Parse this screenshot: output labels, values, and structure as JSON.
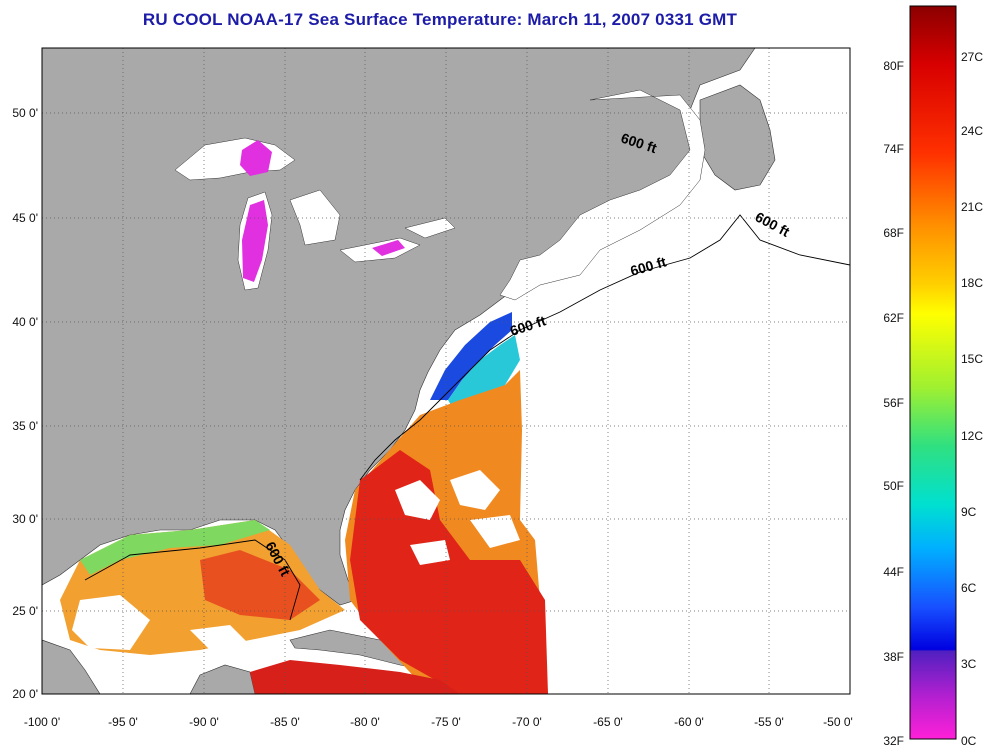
{
  "title": "RU COOL  NOAA-17  Sea Surface Temperature:  March 11, 2007 0331 GMT",
  "map": {
    "lon_range": [
      -100,
      -50
    ],
    "lat_range": [
      20,
      52.5
    ],
    "lon_ticks": [
      "-100 0'",
      "-95 0'",
      "-90 0'",
      "-85 0'",
      "-80 0'",
      "-75 0'",
      "-70 0'",
      "-65 0'",
      "-60 0'",
      "-55 0'",
      "-50 0'"
    ],
    "lat_ticks": [
      "50 0'",
      "45 0'",
      "40 0'",
      "35 0'",
      "30 0'",
      "25 0'",
      "20 0'"
    ],
    "grid": "dotted",
    "land_color": "#a9a9a9",
    "no_data_color": "#ffffff",
    "contour_labels": [
      "600 ft",
      "600 ft",
      "600 ft",
      "600 ft",
      "600 ft"
    ]
  },
  "colorbar": {
    "fahrenheit_labels": [
      "80F",
      "74F",
      "68F",
      "62F",
      "56F",
      "50F",
      "44F",
      "38F",
      "32F"
    ],
    "celsius_labels": [
      "27C",
      "24C",
      "21C",
      "18C",
      "15C",
      "12C",
      "9C",
      "6C",
      "3C",
      "0C"
    ]
  }
}
